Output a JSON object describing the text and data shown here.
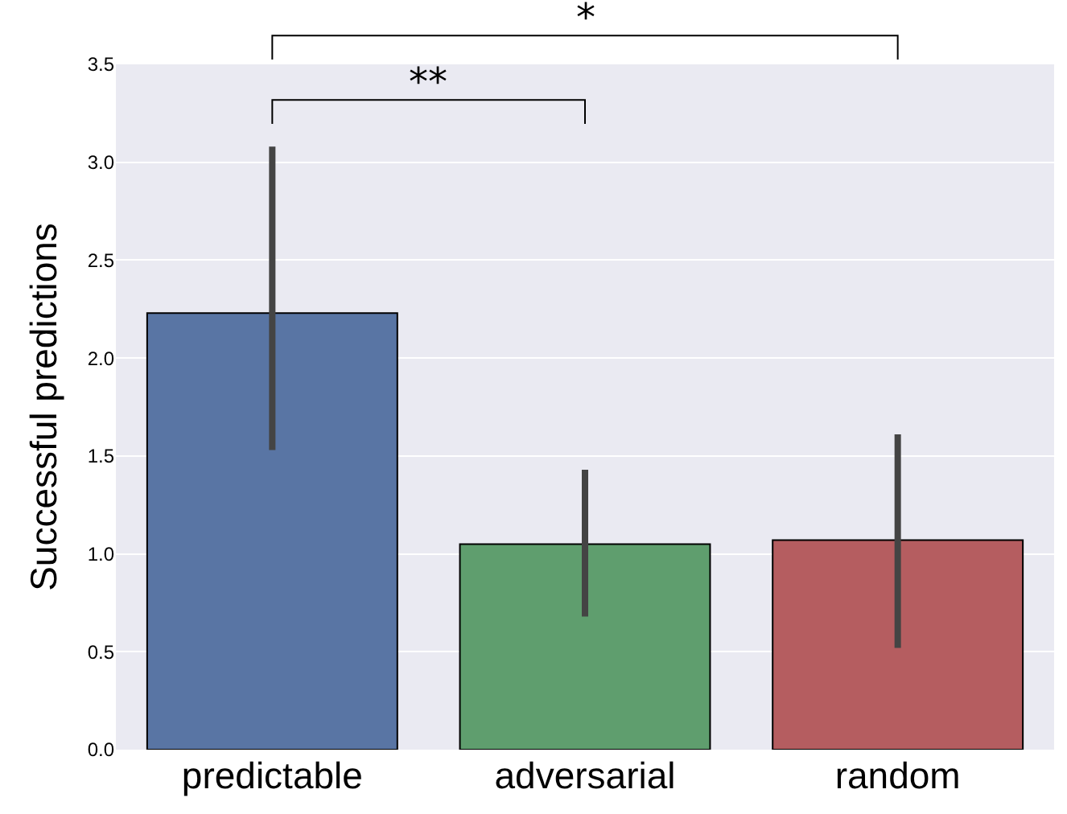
{
  "chart_data": {
    "type": "bar",
    "ylabel": "Successful predictions",
    "categories": [
      "predictable",
      "adversarial",
      "random"
    ],
    "values": [
      2.23,
      1.05,
      1.07
    ],
    "colors": [
      "#5975a4",
      "#5f9e6e",
      "#b55d60"
    ],
    "errors": [
      [
        1.53,
        3.08
      ],
      [
        0.68,
        1.43
      ],
      [
        0.52,
        1.61
      ]
    ],
    "ylim": [
      0,
      3.5
    ],
    "yticks": [
      {
        "value": 0,
        "label": "0.0"
      },
      {
        "value": 0.5,
        "label": "0.5"
      },
      {
        "value": 1,
        "label": "1.0"
      },
      {
        "value": 1.5,
        "label": "1.5"
      },
      {
        "value": 2,
        "label": "2.0"
      },
      {
        "value": 2.5,
        "label": "2.5"
      },
      {
        "value": 3,
        "label": "3.0"
      },
      {
        "value": 3.5,
        "label": "3.5"
      }
    ],
    "grid": "y",
    "annotations": [
      "**",
      "*"
    ]
  }
}
